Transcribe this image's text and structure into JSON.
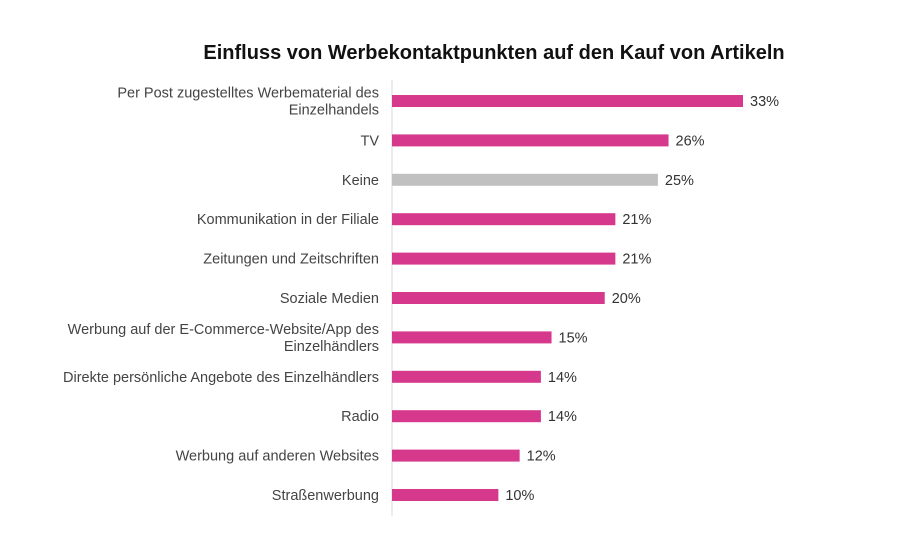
{
  "chart_data": {
    "type": "bar",
    "orientation": "horizontal",
    "title": "Einfluss von Werbekontaktpunkten auf den Kauf von Artikeln",
    "categories": [
      [
        "Per Post zugestelltes Werbematerial des",
        "Einzelhandels"
      ],
      [
        "TV"
      ],
      [
        "Keine"
      ],
      [
        "Kommunikation in der Filiale"
      ],
      [
        "Zeitungen und Zeitschriften"
      ],
      [
        "Soziale Medien"
      ],
      [
        "Werbung auf der E-Commerce-Website/App des",
        "Einzelhändlers"
      ],
      [
        "Direkte persönliche Angebote des Einzelhändlers"
      ],
      [
        "Radio"
      ],
      [
        "Werbung auf anderen Websites"
      ],
      [
        "Straßenwerbung"
      ]
    ],
    "values": [
      33,
      26,
      25,
      21,
      21,
      20,
      15,
      14,
      14,
      12,
      10
    ],
    "value_labels": [
      "33%",
      "26%",
      "25%",
      "21%",
      "21%",
      "20%",
      "15%",
      "14%",
      "14%",
      "12%",
      "10%"
    ],
    "xlim": [
      0,
      33
    ],
    "grid": false,
    "legend": "none",
    "colors": {
      "default": "#D6398C",
      "highlight": "#C0C0C0",
      "axis": "#D9D9D9"
    },
    "highlight_index": 2
  }
}
